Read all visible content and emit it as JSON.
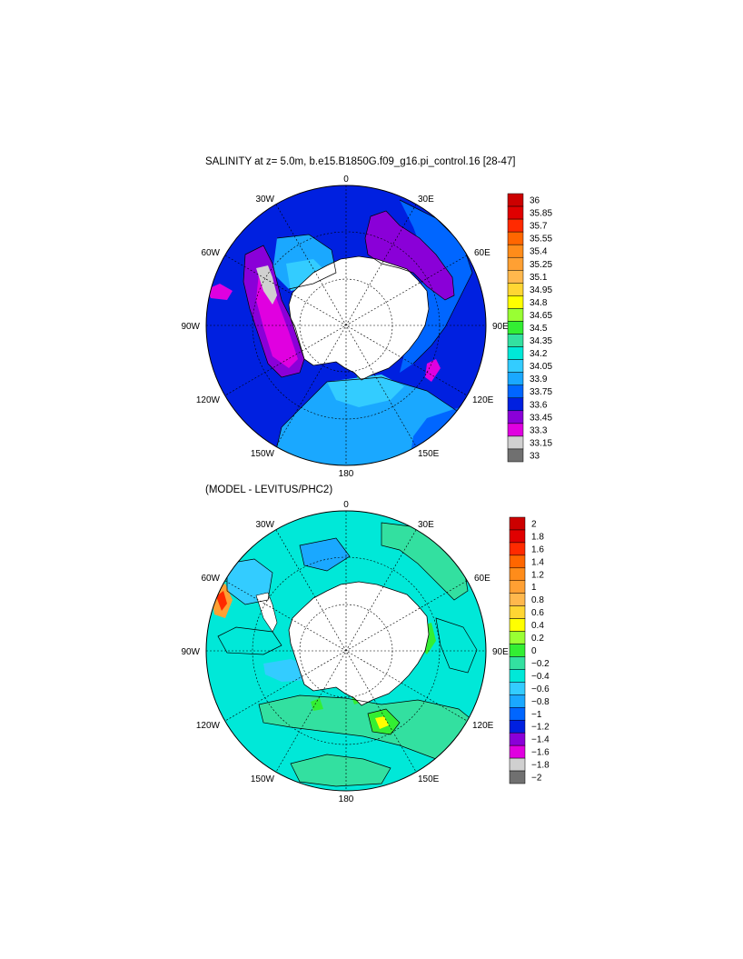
{
  "panels": [
    {
      "id": "salinity",
      "title": "SALINITY at z=   5.0m, b.e15.B1850G.f09_g16.pi_control.16 [28-47]",
      "longitude_labels": [
        "0",
        "30E",
        "60E",
        "90E",
        "120E",
        "150E",
        "180",
        "150W",
        "120W",
        "90W",
        "60W",
        "30W"
      ],
      "colorbar": {
        "labels": [
          "36",
          "35.85",
          "35.7",
          "35.55",
          "35.4",
          "35.25",
          "35.1",
          "34.95",
          "34.8",
          "34.65",
          "34.5",
          "34.35",
          "34.2",
          "34.05",
          "33.9",
          "33.75",
          "33.6",
          "33.45",
          "33.3",
          "33.15",
          "33"
        ],
        "colors": [
          "#cc0000",
          "#e00000",
          "#ff2a00",
          "#ff6600",
          "#ff8c1a",
          "#ffa033",
          "#ffb84d",
          "#ffd633",
          "#ffff00",
          "#99ff33",
          "#33ee33",
          "#33e0a0",
          "#00e8d8",
          "#33ccff",
          "#1aa8ff",
          "#0066ff",
          "#0020e0",
          "#8a00d8",
          "#e000e0",
          "#d0d0d0",
          "#707070"
        ]
      }
    },
    {
      "id": "difference",
      "title": "(MODEL - LEVITUS/PHC2)",
      "longitude_labels": [
        "0",
        "30E",
        "60E",
        "90E",
        "120E",
        "150E",
        "180",
        "150W",
        "120W",
        "90W",
        "60W",
        "30W"
      ],
      "colorbar": {
        "labels": [
          "2",
          "1.8",
          "1.6",
          "1.4",
          "1.2",
          "1",
          "0.8",
          "0.6",
          "0.4",
          "0.2",
          "0",
          "−0.2",
          "−0.4",
          "−0.6",
          "−0.8",
          "−1",
          "−1.2",
          "−1.4",
          "−1.6",
          "−1.8",
          "−2"
        ],
        "colors": [
          "#cc0000",
          "#e00000",
          "#ff2a00",
          "#ff6600",
          "#ff8c1a",
          "#ffa033",
          "#ffb84d",
          "#ffd633",
          "#ffff00",
          "#99ff33",
          "#33ee33",
          "#33e0a0",
          "#00e8d8",
          "#33ccff",
          "#1aa8ff",
          "#0066ff",
          "#0020e0",
          "#8a00d8",
          "#e000e0",
          "#d0d0d0",
          "#707070"
        ]
      }
    }
  ]
}
